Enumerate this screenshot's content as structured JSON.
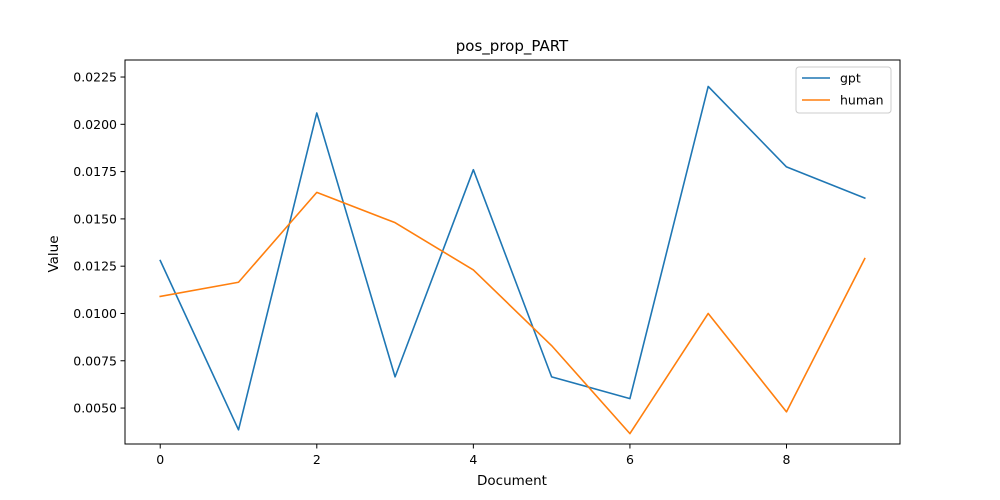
{
  "chart_data": {
    "type": "line",
    "title": "pos_prop_PART",
    "xlabel": "Document",
    "ylabel": "Value",
    "x": [
      0,
      1,
      2,
      3,
      4,
      5,
      6,
      7,
      8,
      9
    ],
    "xlim": [
      -0.45,
      9.45
    ],
    "ylim": [
      0.0031,
      0.0234
    ],
    "xticks": [
      0,
      2,
      4,
      6,
      8
    ],
    "xtick_labels": [
      "0",
      "2",
      "4",
      "6",
      "8"
    ],
    "yticks": [
      0.005,
      0.0075,
      0.01,
      0.0125,
      0.015,
      0.0175,
      0.02,
      0.0225
    ],
    "ytick_labels": [
      "0.0050",
      "0.0075",
      "0.0100",
      "0.0125",
      "0.0150",
      "0.0175",
      "0.0200",
      "0.0225"
    ],
    "grid": false,
    "legend_position": "top-right",
    "series": [
      {
        "name": "gpt",
        "color": "#1f77b4",
        "values": [
          0.0128,
          0.00385,
          0.0206,
          0.00665,
          0.0176,
          0.00665,
          0.0055,
          0.022,
          0.01775,
          0.0161
        ]
      },
      {
        "name": "human",
        "color": "#ff7f0e",
        "values": [
          0.0109,
          0.01165,
          0.0164,
          0.0148,
          0.0123,
          0.0083,
          0.00365,
          0.01,
          0.0048,
          0.0129
        ]
      }
    ]
  }
}
